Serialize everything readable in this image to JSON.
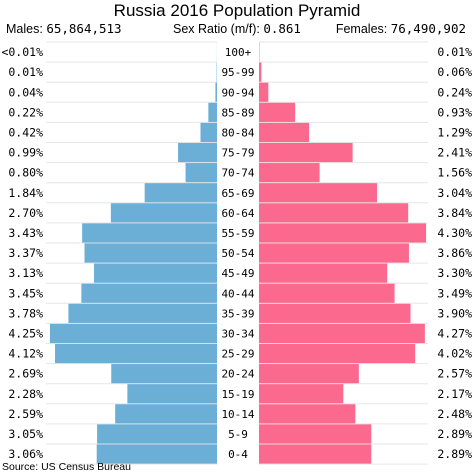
{
  "chart_data": {
    "type": "bar",
    "title": "Russia 2016 Population Pyramid",
    "males_label": "Males:",
    "males_total": "65,864,513",
    "ratio_label": "Sex Ratio (m/f):",
    "ratio_value": "0.861",
    "females_label": "Females:",
    "females_total": "76,490,902",
    "source": "Source: US Census Bureau",
    "categories": [
      "100+",
      "95-99",
      "90-94",
      "85-89",
      "80-84",
      "75-79",
      "70-74",
      "65-69",
      "60-64",
      "55-59",
      "50-54",
      "45-49",
      "40-44",
      "35-39",
      "30-34",
      "25-29",
      "20-24",
      "15-19",
      "10-14",
      "5-9",
      "0-4"
    ],
    "series": [
      {
        "name": "Males",
        "color": "#6baed6",
        "values": [
          0.002,
          0.01,
          0.04,
          0.22,
          0.42,
          0.99,
          0.8,
          1.84,
          2.7,
          3.43,
          3.37,
          3.13,
          3.45,
          3.78,
          4.25,
          4.12,
          2.69,
          2.28,
          2.59,
          3.05,
          3.06
        ],
        "labels": [
          "<0.01%",
          "0.01%",
          "0.04%",
          "0.22%",
          "0.42%",
          "0.99%",
          "0.80%",
          "1.84%",
          "2.70%",
          "3.43%",
          "3.37%",
          "3.13%",
          "3.45%",
          "3.78%",
          "4.25%",
          "4.12%",
          "2.69%",
          "2.28%",
          "2.59%",
          "3.05%",
          "3.06%"
        ]
      },
      {
        "name": "Females",
        "color": "#fb6a8e",
        "values": [
          0.01,
          0.06,
          0.24,
          0.93,
          1.29,
          2.41,
          1.56,
          3.04,
          3.84,
          4.3,
          3.86,
          3.3,
          3.49,
          3.9,
          4.27,
          4.02,
          2.57,
          2.17,
          2.48,
          2.89,
          2.89
        ],
        "labels": [
          "0.01%",
          "0.06%",
          "0.24%",
          "0.93%",
          "1.29%",
          "2.41%",
          "1.56%",
          "3.04%",
          "3.84%",
          "4.30%",
          "3.86%",
          "3.30%",
          "3.49%",
          "3.90%",
          "4.27%",
          "4.02%",
          "2.57%",
          "2.17%",
          "2.48%",
          "2.89%",
          "2.89%"
        ]
      }
    ],
    "xlim": [
      0,
      4.35
    ],
    "grid": true
  }
}
